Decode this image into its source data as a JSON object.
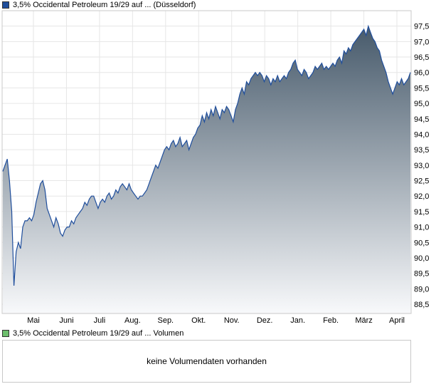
{
  "legend": {
    "price_label": "3,5% Occidental Petroleum 19/29 auf ... (Düsseldorf)",
    "price_color": "#1f4e9c",
    "volume_label": "3,5% Occidental Petroleum 19/29 auf ... Volumen",
    "volume_color": "#6dbf6d"
  },
  "volume_panel": {
    "message": "keine Volumendaten vorhanden"
  },
  "chart_data": {
    "type": "area",
    "title": "",
    "xlabel": "",
    "ylabel": "",
    "ylim": [
      88.2,
      98.0
    ],
    "yticks": [
      88.5,
      89.0,
      89.5,
      90.0,
      90.5,
      91.0,
      91.5,
      92.0,
      92.5,
      93.0,
      93.5,
      94.0,
      94.5,
      95.0,
      95.5,
      96.0,
      96.5,
      97.0,
      97.5
    ],
    "ytick_labels": [
      "88,5",
      "89,0",
      "89,5",
      "90,0",
      "90,5",
      "91,0",
      "91,5",
      "92,0",
      "92,5",
      "93,0",
      "93,5",
      "94,0",
      "94,5",
      "95,0",
      "95,5",
      "96,0",
      "96,5",
      "97,0",
      "97,5"
    ],
    "xlabels": [
      "Mai",
      "Juni",
      "Juli",
      "Aug.",
      "Sep.",
      "Okt.",
      "Nov.",
      "Dez.",
      "Jan.",
      "Feb.",
      "März",
      "April"
    ],
    "grid": true,
    "line_color": "#1f4e9c",
    "fill_top_color": "#475a6b",
    "fill_bottom_color": "#f8f9fb",
    "series": [
      {
        "values": [
          92.8,
          93.0,
          93.2,
          92.5,
          91.5,
          89.1,
          90.2,
          90.5,
          90.3,
          91.0,
          91.2,
          91.2,
          91.3,
          91.2,
          91.4,
          91.8,
          92.1,
          92.4,
          92.5,
          92.2,
          91.6,
          91.4,
          91.2,
          91.0,
          91.3,
          91.1,
          90.8,
          90.7,
          90.9,
          91.0,
          91.0,
          91.2,
          91.1,
          91.3,
          91.4,
          91.5,
          91.6,
          91.8,
          91.7,
          91.9,
          92.0,
          92.0,
          91.8,
          91.6,
          91.8,
          91.9,
          91.8,
          92.0,
          92.1,
          91.9,
          92.0,
          92.2,
          92.1,
          92.3,
          92.4,
          92.3,
          92.2,
          92.4,
          92.2,
          92.1,
          92.0,
          91.9,
          92.0,
          92.0,
          92.1,
          92.2,
          92.4,
          92.6,
          92.8,
          93.0,
          92.9,
          93.1,
          93.3,
          93.5,
          93.6,
          93.5,
          93.7,
          93.8,
          93.6,
          93.7,
          93.9,
          93.6,
          93.7,
          93.8,
          93.5,
          93.7,
          93.9,
          94.0,
          94.2,
          94.3,
          94.6,
          94.4,
          94.7,
          94.5,
          94.8,
          94.6,
          94.9,
          94.7,
          94.5,
          94.8,
          94.7,
          94.9,
          94.8,
          94.6,
          94.4,
          94.8,
          95.0,
          95.3,
          95.5,
          95.3,
          95.7,
          95.6,
          95.8,
          95.9,
          96.0,
          95.9,
          96.0,
          95.9,
          95.7,
          95.9,
          95.8,
          95.6,
          95.8,
          95.7,
          95.9,
          95.7,
          95.8,
          95.9,
          95.8,
          96.0,
          96.1,
          96.3,
          96.4,
          96.1,
          96.0,
          95.9,
          96.1,
          96.0,
          95.8,
          95.9,
          96.0,
          96.2,
          96.1,
          96.2,
          96.3,
          96.1,
          96.2,
          96.1,
          96.2,
          96.3,
          96.2,
          96.4,
          96.5,
          96.3,
          96.7,
          96.6,
          96.8,
          96.7,
          96.9,
          97.0,
          97.1,
          97.2,
          97.3,
          97.4,
          97.2,
          97.5,
          97.3,
          97.1,
          97.0,
          96.8,
          96.7,
          96.4,
          96.2,
          96.0,
          95.7,
          95.5,
          95.3,
          95.5,
          95.7,
          95.6,
          95.8,
          95.6,
          95.7,
          95.8,
          96.0
        ]
      }
    ]
  }
}
